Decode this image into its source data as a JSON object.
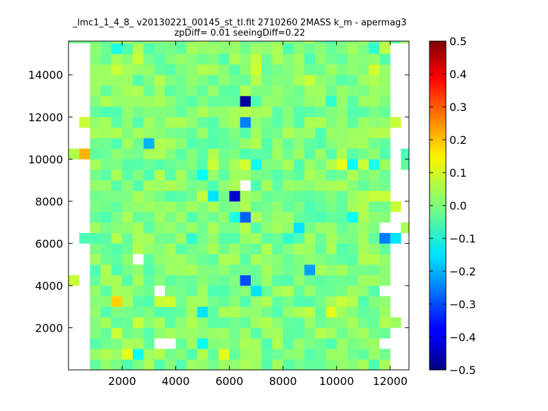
{
  "chart_data": {
    "type": "heatmap",
    "title": "_lmc1_1_4_8_ v20130221_00145_st_tl.fit 2710260 2MASS k_m - apermag3",
    "subtitle": "zpDiff= 0.01 seeingDiff=0.22",
    "xlabel": "",
    "ylabel": "",
    "xlim": [
      0,
      12700
    ],
    "ylim": [
      0,
      15600
    ],
    "x_ticks": [
      "2000",
      "4000",
      "6000",
      "8000",
      "10000",
      "12000"
    ],
    "y_ticks": [
      "2000",
      "4000",
      "6000",
      "8000",
      "10000",
      "12000",
      "14000"
    ],
    "colorbar": {
      "colormap": "jet",
      "range": [
        -0.5,
        0.5
      ],
      "ticks": [
        "−0.5",
        "−0.4",
        "−0.3",
        "−0.2",
        "−0.1",
        "0.0",
        "0.1",
        "0.2",
        "0.3",
        "0.4",
        "0.5"
      ]
    },
    "grid": false,
    "bin_size": [
      400,
      500
    ],
    "x_start": 0,
    "y_start": 0,
    "cells": [
      {
        "x": 0,
        "y": 10000,
        "v": 0.05
      },
      {
        "x": 400,
        "y": 10000,
        "v": 0.2
      },
      {
        "x": 0,
        "y": 4000,
        "v": 0.07
      },
      {
        "x": 400,
        "y": 11500,
        "v": 0.07
      },
      {
        "x": 400,
        "y": 6000,
        "v": -0.05
      },
      {
        "x": 1600,
        "y": 3000,
        "v": 0.17
      },
      {
        "x": 2000,
        "y": 500,
        "v": 0.1
      },
      {
        "x": 2400,
        "y": 500,
        "v": -0.12
      },
      {
        "x": 2800,
        "y": 10500,
        "v": -0.2
      },
      {
        "x": 1600,
        "y": 15000,
        "v": -0.1
      },
      {
        "x": 1600,
        "y": 14000,
        "v": 0.07
      },
      {
        "x": 2400,
        "y": 14500,
        "v": 0.07
      },
      {
        "x": 1600,
        "y": 1500,
        "v": 0.07
      },
      {
        "x": 2000,
        "y": 3500,
        "v": 0.03
      },
      {
        "x": 3200,
        "y": 3000,
        "v": 0.07
      },
      {
        "x": 3600,
        "y": 3000,
        "v": 0.08
      },
      {
        "x": 2400,
        "y": 2000,
        "v": 0.07
      },
      {
        "x": 4800,
        "y": 2500,
        "v": -0.15
      },
      {
        "x": 4800,
        "y": 1000,
        "v": -0.12
      },
      {
        "x": 4800,
        "y": 9000,
        "v": -0.12
      },
      {
        "x": 4800,
        "y": 8000,
        "v": 0.07
      },
      {
        "x": 5200,
        "y": 8000,
        "v": -0.15
      },
      {
        "x": 5200,
        "y": 9500,
        "v": 0.07
      },
      {
        "x": 4400,
        "y": 6000,
        "v": -0.08
      },
      {
        "x": 5600,
        "y": 500,
        "v": 0.1
      },
      {
        "x": 6000,
        "y": 8000,
        "v": -0.42
      },
      {
        "x": 6400,
        "y": 12500,
        "v": -0.47
      },
      {
        "x": 6400,
        "y": 11500,
        "v": -0.25
      },
      {
        "x": 6400,
        "y": 7000,
        "v": -0.28
      },
      {
        "x": 6000,
        "y": 7000,
        "v": -0.1
      },
      {
        "x": 6400,
        "y": 9500,
        "v": 0.08
      },
      {
        "x": 6800,
        "y": 9500,
        "v": -0.12
      },
      {
        "x": 6400,
        "y": 4000,
        "v": -0.3
      },
      {
        "x": 6800,
        "y": 3500,
        "v": -0.15
      },
      {
        "x": 6800,
        "y": 14000,
        "v": 0.08
      },
      {
        "x": 6800,
        "y": 14500,
        "v": 0.07
      },
      {
        "x": 6800,
        "y": 13500,
        "v": 0.05
      },
      {
        "x": 6400,
        "y": 12000,
        "v": 0.05
      },
      {
        "x": 7200,
        "y": 12000,
        "v": 0.04
      },
      {
        "x": 6400,
        "y": 6500,
        "v": 0.05
      },
      {
        "x": 8400,
        "y": 6500,
        "v": -0.15
      },
      {
        "x": 8000,
        "y": 6000,
        "v": -0.08
      },
      {
        "x": 8800,
        "y": 4500,
        "v": -0.22
      },
      {
        "x": 8800,
        "y": 13500,
        "v": 0.07
      },
      {
        "x": 8800,
        "y": 2500,
        "v": 0.06
      },
      {
        "x": 9200,
        "y": 1500,
        "v": 0.05
      },
      {
        "x": 9600,
        "y": 12500,
        "v": -0.08
      },
      {
        "x": 9600,
        "y": 2500,
        "v": 0.1
      },
      {
        "x": 10000,
        "y": 3000,
        "v": 0.07
      },
      {
        "x": 10400,
        "y": 3000,
        "v": 0.05
      },
      {
        "x": 10400,
        "y": 2000,
        "v": 0.04
      },
      {
        "x": 10000,
        "y": 9500,
        "v": 0.1
      },
      {
        "x": 10400,
        "y": 9500,
        "v": -0.12
      },
      {
        "x": 10800,
        "y": 9500,
        "v": 0.07
      },
      {
        "x": 11200,
        "y": 9500,
        "v": -0.1
      },
      {
        "x": 10400,
        "y": 7000,
        "v": -0.12
      },
      {
        "x": 10800,
        "y": 7500,
        "v": 0.05
      },
      {
        "x": 11200,
        "y": 8000,
        "v": 0.07
      },
      {
        "x": 11600,
        "y": 8000,
        "v": 0.07
      },
      {
        "x": 12000,
        "y": 7500,
        "v": 0.07
      },
      {
        "x": 11600,
        "y": 6000,
        "v": -0.25
      },
      {
        "x": 12000,
        "y": 6000,
        "v": -0.15
      },
      {
        "x": 12400,
        "y": 6500,
        "v": 0.04
      },
      {
        "x": 11600,
        "y": 5500,
        "v": -0.03
      },
      {
        "x": 11200,
        "y": 14000,
        "v": 0.08
      },
      {
        "x": 11200,
        "y": 15000,
        "v": -0.08
      },
      {
        "x": 11600,
        "y": 15000,
        "v": 0.06
      },
      {
        "x": 11600,
        "y": 11000,
        "v": 0.05
      },
      {
        "x": 12000,
        "y": 11500,
        "v": 0.07
      },
      {
        "x": 12000,
        "y": 2000,
        "v": 0.03
      },
      {
        "x": 12400,
        "y": 9500,
        "v": -0.03
      },
      {
        "x": 12400,
        "y": 10000,
        "v": -0.05
      }
    ],
    "empty_cells": [
      {
        "x": 0,
        "y": 15000
      },
      {
        "x": 400,
        "y": 15000
      },
      {
        "x": 0,
        "y": 14500
      },
      {
        "x": 400,
        "y": 14500
      },
      {
        "x": 0,
        "y": 14000
      },
      {
        "x": 400,
        "y": 14000
      },
      {
        "x": 0,
        "y": 13500
      },
      {
        "x": 400,
        "y": 13500
      },
      {
        "x": 0,
        "y": 13000
      },
      {
        "x": 400,
        "y": 13000
      },
      {
        "x": 0,
        "y": 12500
      },
      {
        "x": 400,
        "y": 12500
      },
      {
        "x": 0,
        "y": 12000
      },
      {
        "x": 400,
        "y": 12000
      },
      {
        "x": 0,
        "y": 11500
      },
      {
        "x": 0,
        "y": 11000
      },
      {
        "x": 400,
        "y": 11000
      },
      {
        "x": 0,
        "y": 10500
      },
      {
        "x": 400,
        "y": 10500
      },
      {
        "x": 0,
        "y": 9500
      },
      {
        "x": 400,
        "y": 9500
      },
      {
        "x": 0,
        "y": 9000
      },
      {
        "x": 400,
        "y": 9000
      },
      {
        "x": 0,
        "y": 8500
      },
      {
        "x": 400,
        "y": 8500
      },
      {
        "x": 0,
        "y": 8000
      },
      {
        "x": 400,
        "y": 8000
      },
      {
        "x": 0,
        "y": 7500
      },
      {
        "x": 400,
        "y": 7500
      },
      {
        "x": 0,
        "y": 7000
      },
      {
        "x": 400,
        "y": 7000
      },
      {
        "x": 0,
        "y": 6500
      },
      {
        "x": 400,
        "y": 6500
      },
      {
        "x": 0,
        "y": 6000
      },
      {
        "x": 0,
        "y": 5500
      },
      {
        "x": 400,
        "y": 5500
      },
      {
        "x": 0,
        "y": 5000
      },
      {
        "x": 400,
        "y": 5000
      },
      {
        "x": 0,
        "y": 4500
      },
      {
        "x": 400,
        "y": 4500
      },
      {
        "x": 400,
        "y": 4000
      },
      {
        "x": 0,
        "y": 3500
      },
      {
        "x": 400,
        "y": 3500
      },
      {
        "x": 0,
        "y": 3000
      },
      {
        "x": 400,
        "y": 3000
      },
      {
        "x": 0,
        "y": 2500
      },
      {
        "x": 400,
        "y": 2500
      },
      {
        "x": 0,
        "y": 2000
      },
      {
        "x": 400,
        "y": 2000
      },
      {
        "x": 0,
        "y": 1500
      },
      {
        "x": 400,
        "y": 1500
      },
      {
        "x": 0,
        "y": 1000
      },
      {
        "x": 400,
        "y": 1000
      },
      {
        "x": 0,
        "y": 500
      },
      {
        "x": 400,
        "y": 500
      },
      {
        "x": 0,
        "y": 0
      },
      {
        "x": 400,
        "y": 0
      },
      {
        "x": 12000,
        "y": 15000
      },
      {
        "x": 12400,
        "y": 15000
      },
      {
        "x": 12000,
        "y": 14500
      },
      {
        "x": 12400,
        "y": 14500
      },
      {
        "x": 12000,
        "y": 14000
      },
      {
        "x": 12400,
        "y": 14000
      },
      {
        "x": 12000,
        "y": 13500
      },
      {
        "x": 12400,
        "y": 13500
      },
      {
        "x": 12000,
        "y": 13000
      },
      {
        "x": 12400,
        "y": 13000
      },
      {
        "x": 12000,
        "y": 12500
      },
      {
        "x": 12400,
        "y": 12500
      },
      {
        "x": 12000,
        "y": 12000
      },
      {
        "x": 12400,
        "y": 12000
      },
      {
        "x": 12400,
        "y": 11500
      },
      {
        "x": 12000,
        "y": 11000
      },
      {
        "x": 12400,
        "y": 11000
      },
      {
        "x": 12000,
        "y": 10500
      },
      {
        "x": 12400,
        "y": 10500
      },
      {
        "x": 12000,
        "y": 10000
      },
      {
        "x": 12000,
        "y": 9500
      },
      {
        "x": 12000,
        "y": 9000
      },
      {
        "x": 12400,
        "y": 9000
      },
      {
        "x": 12000,
        "y": 8500
      },
      {
        "x": 12400,
        "y": 8500
      },
      {
        "x": 12000,
        "y": 8000
      },
      {
        "x": 12400,
        "y": 8000
      },
      {
        "x": 12400,
        "y": 7500
      },
      {
        "x": 12000,
        "y": 7000
      },
      {
        "x": 12400,
        "y": 7000
      },
      {
        "x": 12000,
        "y": 6500
      },
      {
        "x": 12400,
        "y": 6000
      },
      {
        "x": 12000,
        "y": 5500
      },
      {
        "x": 12400,
        "y": 5500
      },
      {
        "x": 12000,
        "y": 5000
      },
      {
        "x": 12400,
        "y": 5000
      },
      {
        "x": 12000,
        "y": 4500
      },
      {
        "x": 12400,
        "y": 4500
      },
      {
        "x": 12000,
        "y": 4000
      },
      {
        "x": 12400,
        "y": 4000
      },
      {
        "x": 12000,
        "y": 3500
      },
      {
        "x": 12400,
        "y": 3500
      },
      {
        "x": 12000,
        "y": 3000
      },
      {
        "x": 12400,
        "y": 3000
      },
      {
        "x": 12000,
        "y": 2500
      },
      {
        "x": 12400,
        "y": 2500
      },
      {
        "x": 12400,
        "y": 2000
      },
      {
        "x": 12000,
        "y": 1500
      },
      {
        "x": 12400,
        "y": 1500
      },
      {
        "x": 12000,
        "y": 1000
      },
      {
        "x": 12400,
        "y": 1000
      },
      {
        "x": 12000,
        "y": 500
      },
      {
        "x": 12400,
        "y": 500
      },
      {
        "x": 12000,
        "y": 0
      },
      {
        "x": 12400,
        "y": 0
      },
      {
        "x": 11600,
        "y": 3500
      },
      {
        "x": 11600,
        "y": 1000
      },
      {
        "x": 11600,
        "y": 6500
      },
      {
        "x": 2400,
        "y": 5000
      },
      {
        "x": 3200,
        "y": 3500
      },
      {
        "x": 3200,
        "y": 1000
      },
      {
        "x": 3600,
        "y": 1000
      },
      {
        "x": 6400,
        "y": 8500
      }
    ],
    "default_value": 0.0
  }
}
